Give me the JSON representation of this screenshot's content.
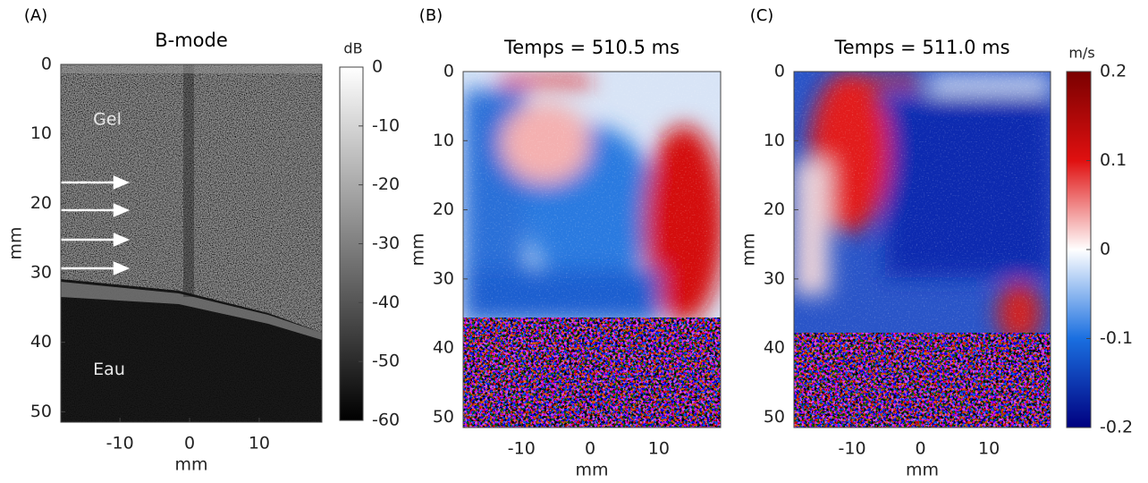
{
  "chart_data": [
    {
      "type": "image",
      "panel_label": "(A)",
      "title": "B-mode",
      "xlabel": "mm",
      "ylabel": "mm",
      "xlim": [
        -18.5,
        19
      ],
      "xticks": [
        -10,
        0,
        10
      ],
      "ylim": [
        0,
        51.5
      ],
      "yticks": [
        0,
        10,
        20,
        30,
        40,
        50
      ],
      "y_reversed": true,
      "annotations": [
        "Gel",
        "Eau"
      ],
      "colorbar": {
        "label": "dB",
        "lim": [
          -60,
          0
        ],
        "ticks": [
          0,
          -10,
          -20,
          -30,
          -40,
          -50,
          -60
        ]
      }
    },
    {
      "type": "image",
      "panel_label": "(B)",
      "title": "Temps = 510.5 ms",
      "xlabel": "mm",
      "ylabel": "mm",
      "xlim": [
        -18.5,
        19
      ],
      "xticks": [
        -10,
        0,
        10
      ],
      "ylim": [
        0,
        51.5
      ],
      "yticks": [
        0,
        10,
        20,
        30,
        40,
        50
      ],
      "y_reversed": true
    },
    {
      "type": "image",
      "panel_label": "(C)",
      "title": "Temps = 511.0 ms",
      "xlabel": "mm",
      "ylabel": "mm",
      "xlim": [
        -18.5,
        19
      ],
      "xticks": [
        -10,
        0,
        10
      ],
      "ylim": [
        0,
        51.5
      ],
      "yticks": [
        0,
        10,
        20,
        30,
        40,
        50
      ],
      "y_reversed": true,
      "colorbar": {
        "label": "m/s",
        "lim": [
          -0.2,
          0.2
        ],
        "ticks": [
          0.2,
          0.1,
          0,
          -0.1,
          -0.2
        ]
      }
    }
  ]
}
